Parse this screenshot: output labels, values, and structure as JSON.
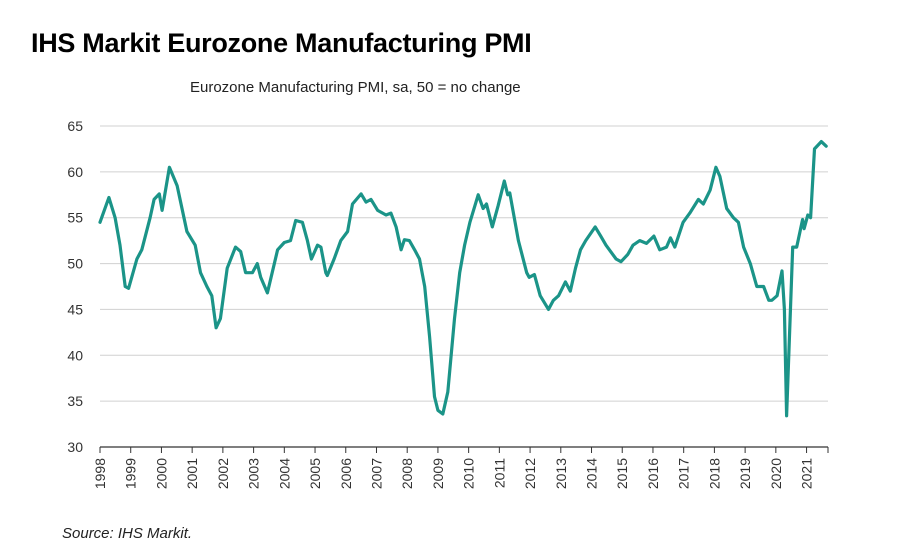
{
  "title": "IHS Markit Eurozone Manufacturing PMI",
  "source": "Source: IHS Markit.",
  "chart_data": {
    "type": "line",
    "title": "IHS Markit Eurozone Manufacturing PMI",
    "subtitle": "Eurozone Manufacturing PMI, sa, 50 = no change",
    "xlabel": "",
    "ylabel": "",
    "ylim": [
      30,
      65
    ],
    "xlim": [
      1998,
      2021.75
    ],
    "yticks": [
      30,
      35,
      40,
      45,
      50,
      55,
      60,
      65
    ],
    "xticks": [
      "1998",
      "1999",
      "2000",
      "2001",
      "2002",
      "2003",
      "2004",
      "2005",
      "2006",
      "2007",
      "2008",
      "2009",
      "2010",
      "2011",
      "2012",
      "2013",
      "2014",
      "2015",
      "2016",
      "2017",
      "2018",
      "2019",
      "2020",
      "2021"
    ],
    "grid": "horizontal",
    "line_color": "#1b9488",
    "series": [
      {
        "x": [
          1998.0,
          1998.29,
          1998.49,
          1998.65,
          1998.82,
          1998.93,
          1999.2,
          1999.36,
          1999.63,
          1999.76,
          1999.93,
          2000.02,
          2000.26,
          2000.51,
          2000.67,
          2000.83,
          2001.1,
          2001.27,
          2001.48,
          2001.64,
          2001.78,
          2001.92,
          2002.14,
          2002.41,
          2002.58,
          2002.74,
          2002.96,
          2003.12,
          2003.23,
          2003.45,
          2003.78,
          2004.0,
          2004.2,
          2004.37,
          2004.59,
          2004.75,
          2004.88,
          2005.08,
          2005.19,
          2005.35,
          2005.4,
          2005.62,
          2005.84,
          2006.06,
          2006.22,
          2006.5,
          2006.66,
          2006.82,
          2007.04,
          2007.31,
          2007.47,
          2007.64,
          2007.8,
          2007.91,
          2008.07,
          2008.24,
          2008.4,
          2008.57,
          2008.73,
          2008.89,
          2009.0,
          2009.16,
          2009.32,
          2009.54,
          2009.71,
          2009.87,
          2010.04,
          2010.31,
          2010.47,
          2010.58,
          2010.77,
          2010.96,
          2011.16,
          2011.27,
          2011.34,
          2011.62,
          2011.89,
          2011.97,
          2012.14,
          2012.33,
          2012.6,
          2012.76,
          2012.93,
          2013.15,
          2013.31,
          2013.48,
          2013.64,
          2013.81,
          2014.12,
          2014.3,
          2014.47,
          2014.8,
          2014.96,
          2015.18,
          2015.35,
          2015.57,
          2015.79,
          2016.03,
          2016.22,
          2016.44,
          2016.57,
          2016.71,
          2016.98,
          2017.2,
          2017.48,
          2017.64,
          2017.86,
          2018.05,
          2018.18,
          2018.4,
          2018.62,
          2018.78,
          2018.95,
          2019.17,
          2019.38,
          2019.6,
          2019.77,
          2019.87,
          2020.04,
          2020.2,
          2020.28,
          2020.35,
          2020.55,
          2020.68,
          2020.87,
          2020.92,
          2021.04,
          2021.13,
          2021.26,
          2021.48,
          2021.64
        ],
        "values": [
          54.5,
          57.2,
          55,
          52,
          47.5,
          47.3,
          50.5,
          51.5,
          55,
          57,
          57.6,
          55.8,
          60.5,
          58.5,
          56,
          53.5,
          52,
          49,
          47.5,
          46.5,
          43,
          44,
          49.5,
          51.8,
          51.3,
          49,
          49,
          50,
          48.5,
          46.8,
          51.5,
          52.3,
          52.5,
          54.7,
          54.5,
          52.5,
          50.5,
          52,
          51.8,
          49,
          48.7,
          50.5,
          52.5,
          53.5,
          56.5,
          57.6,
          56.7,
          57,
          55.8,
          55.3,
          55.5,
          54,
          51.5,
          52.6,
          52.5,
          51.5,
          50.5,
          47.5,
          42,
          35.5,
          34,
          33.6,
          36,
          44,
          49,
          52,
          54.5,
          57.5,
          56,
          56.5,
          54,
          56.3,
          59,
          57.5,
          57.7,
          52.5,
          49,
          48.5,
          48.8,
          46.5,
          45,
          46,
          46.5,
          48,
          47,
          49.5,
          51.5,
          52.5,
          54,
          53,
          52,
          50.5,
          50.2,
          51,
          52,
          52.5,
          52.2,
          53,
          51.5,
          51.8,
          52.8,
          51.8,
          54.5,
          55.5,
          57,
          56.5,
          58,
          60.5,
          59.5,
          56,
          55,
          54.5,
          51.8,
          50,
          47.5,
          47.5,
          46,
          46,
          46.5,
          49.2,
          45,
          33.4,
          51.8,
          51.8,
          54.8,
          53.8,
          55.3,
          55,
          62.5,
          63.3,
          62.8
        ]
      }
    ]
  }
}
